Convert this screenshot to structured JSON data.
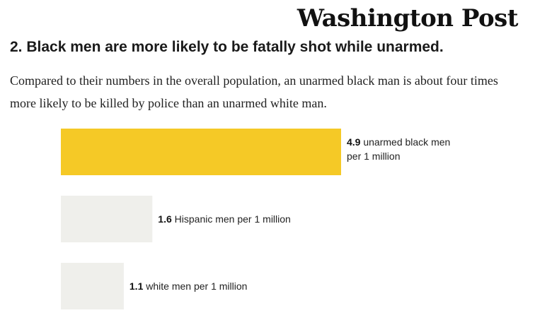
{
  "masthead": "Washington Post",
  "headline": "2. Black men are more likely to be fatally shot while unarmed.",
  "deck": "Compared to their numbers in the overall population, an unarmed black man is about four times more likely to be killed by police than an unarmed white man.",
  "colors": {
    "highlight_bar": "#f5c926",
    "muted_bar": "#efefeb"
  },
  "chart_data": {
    "type": "bar",
    "orientation": "horizontal",
    "categories": [
      "unarmed black men per 1 million",
      "Hispanic men per 1 million",
      "white men per 1 million"
    ],
    "values": [
      4.9,
      1.6,
      1.1
    ],
    "labels": [
      {
        "value": "4.9",
        "lines": [
          "unarmed black men",
          "per 1 million"
        ]
      },
      {
        "value": "1.6",
        "lines": [
          "Hispanic men per 1 million"
        ]
      },
      {
        "value": "1.1",
        "lines": [
          "white men per 1 million"
        ]
      }
    ],
    "title": "",
    "xlabel": "",
    "ylabel": "",
    "xlim": [
      0,
      4.9
    ],
    "grid": false
  }
}
